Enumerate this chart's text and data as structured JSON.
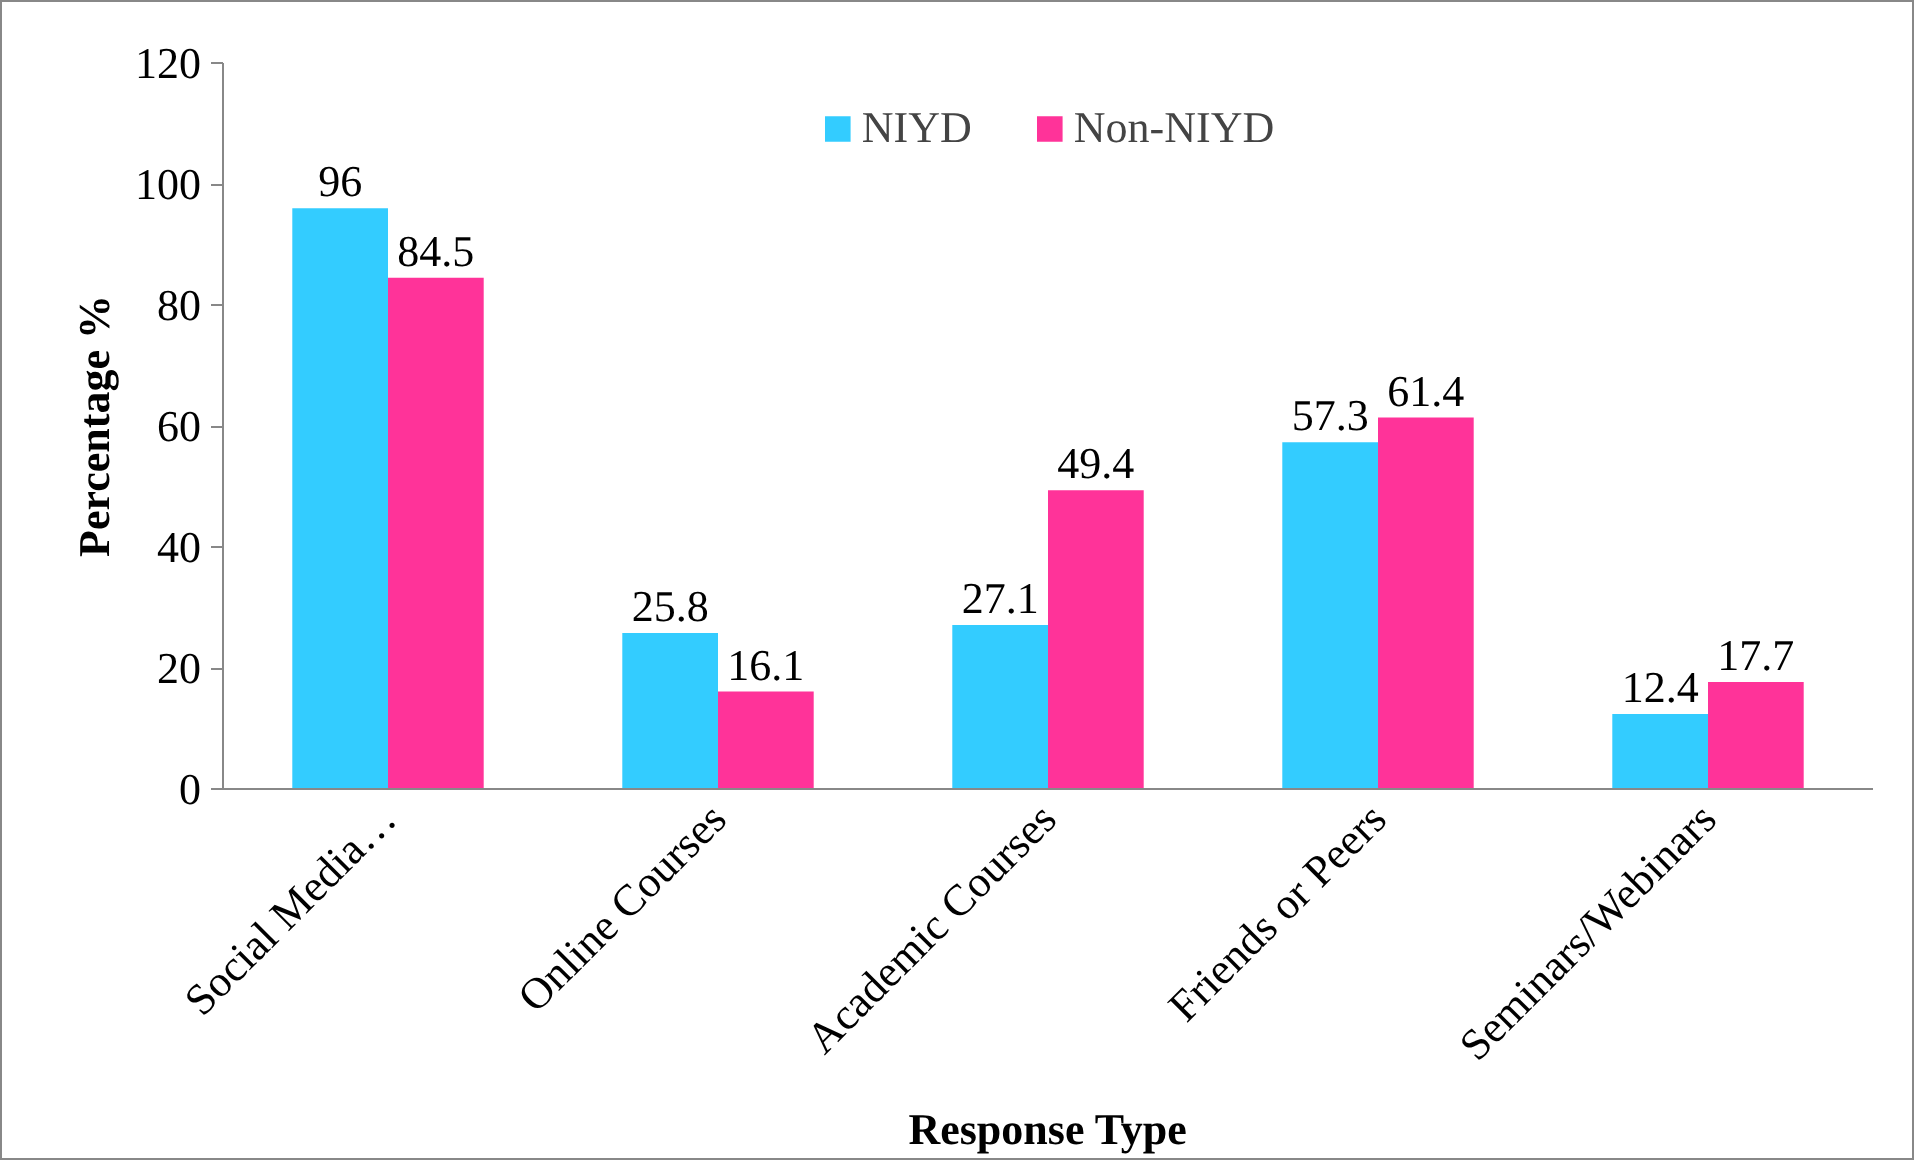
{
  "chart_data": {
    "type": "bar",
    "xlabel": "Response Type",
    "ylabel": "Percentage %",
    "categories": [
      "Social Media…",
      "Online Courses",
      "Academic Courses",
      "Friends or Peers",
      "Seminars/Webinars"
    ],
    "series": [
      {
        "name": "NIYD",
        "color": "#33ccff",
        "values": [
          96,
          25.8,
          27.1,
          57.3,
          12.4
        ]
      },
      {
        "name": "Non-NIYD",
        "color": "#ff3399",
        "values": [
          84.5,
          16.1,
          49.4,
          61.4,
          17.7
        ]
      }
    ],
    "ylim": [
      0,
      120
    ],
    "yticks": [
      0,
      20,
      40,
      60,
      80,
      100,
      120
    ],
    "grid": false,
    "legend": "top",
    "data_labels": true
  }
}
